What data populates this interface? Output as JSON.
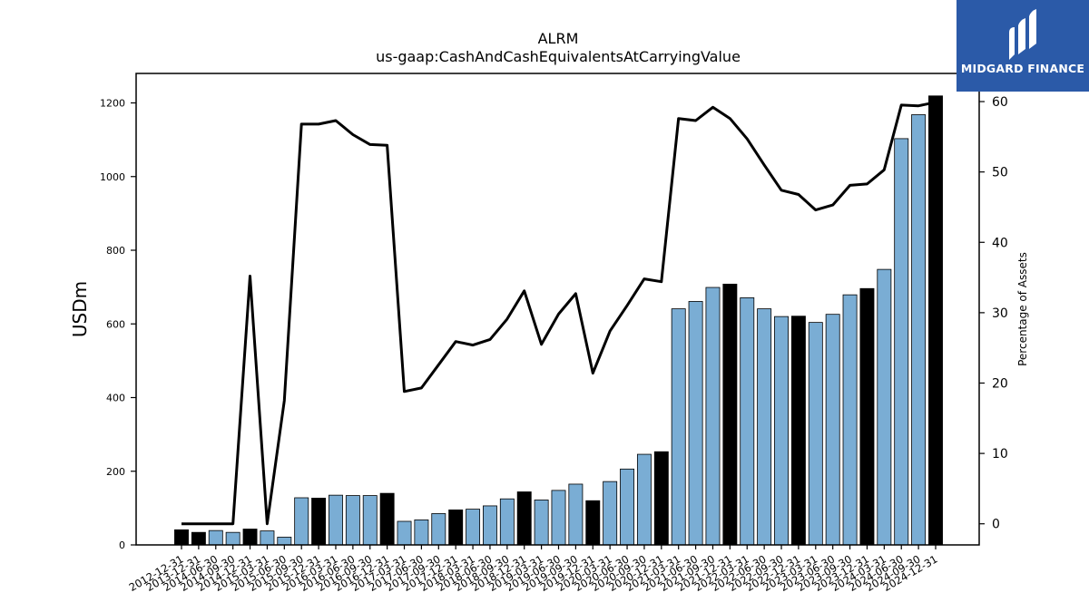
{
  "brand": {
    "name": "MIDGARD FINANCE",
    "color": "#2b5aa8"
  },
  "chart_data": {
    "type": "bar",
    "title": "ALRM",
    "subtitle": "us-gaap:CashAndCashEquivalentsAtCarryingValue",
    "ylabel": "USDm",
    "y2label": "Percentage of Assets",
    "ylim": [
      0,
      1280
    ],
    "y2lim": [
      -3,
      64
    ],
    "yticks": [
      0,
      200,
      400,
      600,
      800,
      1000,
      1200
    ],
    "y2ticks": [
      0,
      10,
      20,
      30,
      40,
      50,
      60
    ],
    "colors": {
      "annual_bar": "#000000",
      "quarter_bar": "#7aadd4",
      "line": "#000000"
    },
    "categories": [
      "2012-12-31",
      "2013-12-31",
      "2014-06-30",
      "2014-09-30",
      "2014-12-31",
      "2015-03-31",
      "2015-06-30",
      "2015-09-30",
      "2015-12-31",
      "2016-03-31",
      "2016-06-30",
      "2016-09-30",
      "2016-12-31",
      "2017-03-31",
      "2017-06-30",
      "2017-09-30",
      "2017-12-31",
      "2018-03-31",
      "2018-06-30",
      "2018-09-30",
      "2018-12-31",
      "2019-03-31",
      "2019-06-30",
      "2019-09-30",
      "2019-12-31",
      "2020-03-31",
      "2020-06-30",
      "2020-09-30",
      "2020-12-31",
      "2021-03-31",
      "2021-06-30",
      "2021-09-30",
      "2021-12-31",
      "2022-03-31",
      "2022-06-30",
      "2022-09-30",
      "2022-12-31",
      "2023-03-31",
      "2023-06-30",
      "2023-09-30",
      "2023-12-31",
      "2024-03-31",
      "2024-06-30",
      "2024-09-30",
      "2024-12-31"
    ],
    "series": [
      {
        "type": "bar",
        "axis": "left",
        "values": [
          41,
          34,
          39,
          34,
          43,
          38,
          21,
          128,
          127,
          135,
          134,
          134,
          140,
          64,
          68,
          85,
          95,
          97,
          106,
          125,
          144,
          122,
          148,
          165,
          120,
          172,
          206,
          246,
          253,
          641,
          661,
          699,
          708,
          671,
          641,
          620,
          621,
          604,
          626,
          679,
          696,
          748,
          1103,
          1168,
          1219
        ],
        "annual": [
          true,
          true,
          false,
          false,
          true,
          false,
          false,
          false,
          true,
          false,
          false,
          false,
          true,
          false,
          false,
          false,
          true,
          false,
          false,
          false,
          true,
          false,
          false,
          false,
          true,
          false,
          false,
          false,
          true,
          false,
          false,
          false,
          true,
          false,
          false,
          false,
          true,
          false,
          false,
          false,
          true,
          false,
          false,
          false,
          true
        ]
      },
      {
        "type": "line",
        "axis": "right",
        "values": [
          0,
          0,
          0,
          0,
          35.2,
          0,
          17.5,
          56.8,
          56.8,
          57.3,
          55.3,
          53.9,
          53.8,
          18.8,
          19.3,
          22.6,
          25.9,
          25.4,
          26.2,
          29.1,
          33.1,
          25.5,
          29.8,
          32.7,
          21.4,
          27.4,
          31,
          34.8,
          34.4,
          57.6,
          57.3,
          59.2,
          57.6,
          54.7,
          51,
          47.4,
          46.8,
          44.6,
          45.3,
          48.1,
          48.3,
          50.3,
          59.5,
          59.4,
          59.9
        ]
      }
    ]
  }
}
